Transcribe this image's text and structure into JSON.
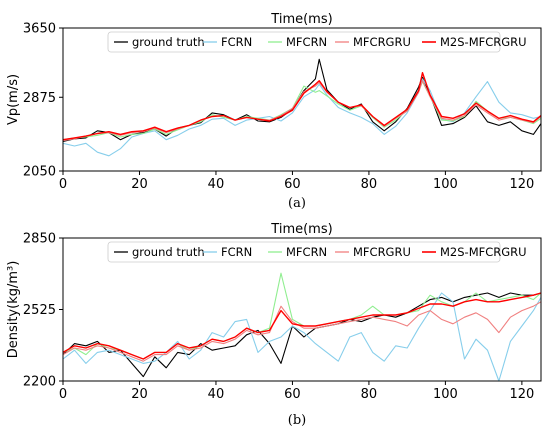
{
  "chart_data": [
    {
      "type": "line",
      "panel": "(a)",
      "title": "Time(ms)",
      "xlabel": "",
      "ylabel": "Vp(m/s)",
      "xlim": [
        0,
        125
      ],
      "ylim": [
        2050,
        3650
      ],
      "xticks": [
        0,
        20,
        40,
        60,
        80,
        100,
        120
      ],
      "yticks": [
        2050,
        2875,
        3650
      ],
      "legend_position": "top",
      "x": [
        0,
        3,
        6,
        9,
        12,
        15,
        18,
        21,
        24,
        27,
        30,
        33,
        36,
        39,
        42,
        45,
        48,
        51,
        54,
        57,
        60,
        63,
        66,
        67,
        69,
        72,
        75,
        78,
        81,
        84,
        87,
        90,
        93,
        94,
        96,
        99,
        102,
        105,
        108,
        111,
        114,
        117,
        120,
        123,
        125
      ],
      "series": [
        {
          "name": "ground truth",
          "color": "#000000",
          "values": [
            2380,
            2410,
            2420,
            2500,
            2480,
            2400,
            2460,
            2480,
            2520,
            2440,
            2530,
            2560,
            2590,
            2700,
            2680,
            2620,
            2680,
            2610,
            2600,
            2650,
            2740,
            2950,
            3080,
            3300,
            2960,
            2820,
            2740,
            2800,
            2600,
            2500,
            2600,
            2750,
            2990,
            3100,
            2900,
            2560,
            2580,
            2650,
            2780,
            2600,
            2560,
            2600,
            2500,
            2460,
            2580
          ]
        },
        {
          "name": "FCRN",
          "color": "#87ceeb",
          "values": [
            2360,
            2330,
            2360,
            2260,
            2220,
            2300,
            2430,
            2470,
            2500,
            2400,
            2450,
            2520,
            2560,
            2630,
            2640,
            2560,
            2620,
            2640,
            2660,
            2610,
            2700,
            2880,
            2960,
            3020,
            2900,
            2760,
            2700,
            2650,
            2580,
            2460,
            2550,
            2700,
            2930,
            3080,
            2950,
            2630,
            2600,
            2700,
            2880,
            3050,
            2820,
            2700,
            2680,
            2640,
            2660
          ]
        },
        {
          "name": "MFCRN",
          "color": "#90ee90",
          "values": [
            2400,
            2420,
            2430,
            2450,
            2480,
            2430,
            2460,
            2470,
            2520,
            2460,
            2510,
            2560,
            2600,
            2680,
            2650,
            2620,
            2660,
            2640,
            2620,
            2680,
            2750,
            3000,
            2930,
            2950,
            2890,
            2800,
            2730,
            2780,
            2650,
            2540,
            2620,
            2730,
            2940,
            3050,
            2880,
            2620,
            2610,
            2660,
            2830,
            2720,
            2640,
            2650,
            2620,
            2580,
            2640
          ]
        },
        {
          "name": "MFCRGRU",
          "color": "#f08080",
          "values": [
            2390,
            2410,
            2440,
            2470,
            2480,
            2450,
            2480,
            2490,
            2530,
            2480,
            2520,
            2560,
            2620,
            2660,
            2670,
            2620,
            2650,
            2630,
            2620,
            2670,
            2750,
            2940,
            3000,
            3040,
            2930,
            2820,
            2760,
            2780,
            2660,
            2550,
            2640,
            2720,
            2930,
            3060,
            2880,
            2640,
            2620,
            2670,
            2790,
            2700,
            2620,
            2650,
            2620,
            2590,
            2660
          ]
        },
        {
          "name": "M2S-MFCRGRU",
          "color": "#ff0000",
          "values": [
            2400,
            2420,
            2440,
            2470,
            2490,
            2460,
            2490,
            2500,
            2540,
            2490,
            2530,
            2560,
            2620,
            2660,
            2670,
            2620,
            2650,
            2630,
            2610,
            2660,
            2730,
            2920,
            3020,
            3060,
            2940,
            2820,
            2760,
            2790,
            2660,
            2560,
            2650,
            2740,
            2950,
            3150,
            2900,
            2660,
            2640,
            2690,
            2810,
            2720,
            2640,
            2670,
            2630,
            2600,
            2670
          ]
        }
      ]
    },
    {
      "type": "line",
      "panel": "(b)",
      "title": "Time(ms)",
      "xlabel": "",
      "ylabel": "Density(kg/m³)",
      "xlim": [
        0,
        125
      ],
      "ylim": [
        2200,
        2850
      ],
      "xticks": [
        0,
        20,
        40,
        60,
        80,
        100,
        120
      ],
      "yticks": [
        2200,
        2525,
        2850
      ],
      "legend_position": "top",
      "x": [
        0,
        3,
        6,
        9,
        12,
        15,
        18,
        21,
        24,
        27,
        30,
        33,
        36,
        39,
        42,
        45,
        48,
        51,
        54,
        57,
        60,
        63,
        66,
        69,
        72,
        75,
        78,
        81,
        84,
        87,
        90,
        93,
        96,
        99,
        102,
        105,
        108,
        111,
        114,
        117,
        120,
        123,
        125
      ],
      "series": [
        {
          "name": "ground truth",
          "color": "#000000",
          "values": [
            2320,
            2370,
            2360,
            2380,
            2330,
            2340,
            2280,
            2220,
            2310,
            2260,
            2330,
            2320,
            2370,
            2340,
            2350,
            2360,
            2410,
            2430,
            2370,
            2280,
            2450,
            2400,
            2440,
            2450,
            2460,
            2480,
            2470,
            2490,
            2500,
            2490,
            2510,
            2540,
            2570,
            2580,
            2560,
            2580,
            2590,
            2600,
            2580,
            2600,
            2590,
            2590,
            2600
          ]
        },
        {
          "name": "FCRN",
          "color": "#87ceeb",
          "values": [
            2300,
            2340,
            2280,
            2330,
            2340,
            2320,
            2300,
            2280,
            2290,
            2330,
            2380,
            2300,
            2340,
            2420,
            2400,
            2470,
            2480,
            2330,
            2380,
            2400,
            2450,
            2420,
            2370,
            2330,
            2290,
            2400,
            2420,
            2330,
            2290,
            2360,
            2350,
            2440,
            2520,
            2600,
            2560,
            2300,
            2390,
            2340,
            2200,
            2380,
            2450,
            2520,
            2580
          ]
        },
        {
          "name": "MFCRN",
          "color": "#90ee90",
          "values": [
            2330,
            2350,
            2320,
            2370,
            2350,
            2340,
            2320,
            2300,
            2330,
            2330,
            2370,
            2340,
            2360,
            2390,
            2380,
            2400,
            2440,
            2420,
            2440,
            2690,
            2480,
            2450,
            2450,
            2460,
            2470,
            2480,
            2500,
            2540,
            2500,
            2500,
            2510,
            2520,
            2590,
            2560,
            2540,
            2560,
            2600,
            2560,
            2570,
            2580,
            2590,
            2570,
            2600
          ]
        },
        {
          "name": "MFCRGRU",
          "color": "#f08080",
          "values": [
            2320,
            2350,
            2340,
            2360,
            2350,
            2330,
            2310,
            2290,
            2320,
            2320,
            2360,
            2340,
            2350,
            2380,
            2370,
            2390,
            2430,
            2410,
            2420,
            2540,
            2470,
            2440,
            2440,
            2450,
            2460,
            2470,
            2480,
            2490,
            2480,
            2470,
            2450,
            2500,
            2520,
            2480,
            2460,
            2490,
            2510,
            2480,
            2420,
            2490,
            2520,
            2540,
            2560
          ]
        },
        {
          "name": "M2S-MFCRGRU",
          "color": "#ff0000",
          "values": [
            2330,
            2360,
            2350,
            2370,
            2360,
            2340,
            2320,
            2300,
            2330,
            2330,
            2370,
            2350,
            2360,
            2390,
            2380,
            2400,
            2440,
            2420,
            2430,
            2520,
            2460,
            2450,
            2450,
            2460,
            2470,
            2480,
            2490,
            2500,
            2500,
            2500,
            2510,
            2530,
            2550,
            2550,
            2540,
            2560,
            2570,
            2560,
            2560,
            2570,
            2580,
            2590,
            2600
          ]
        }
      ]
    }
  ]
}
